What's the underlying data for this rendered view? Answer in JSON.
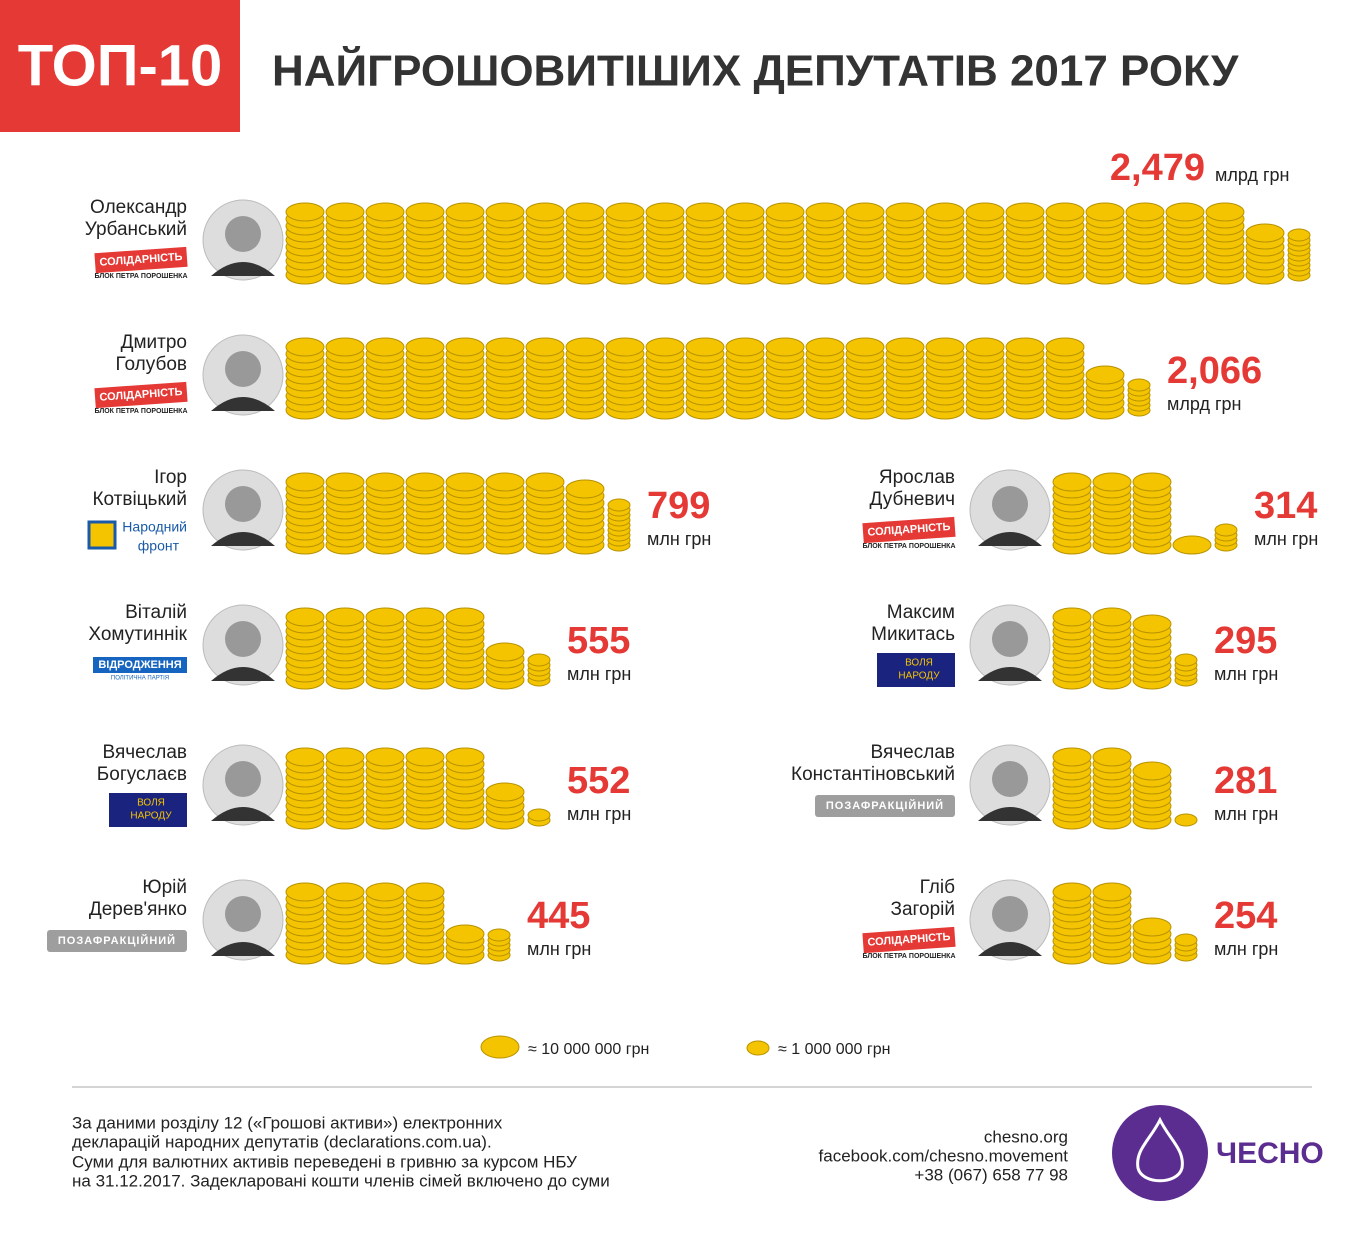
{
  "header": {
    "badge": "ТОП-10",
    "title": "НАЙГРОШОВИТІШИХ ДЕПУТАТІВ 2017 РОКУ"
  },
  "deputies": [
    {
      "name": [
        "Олександр",
        "Урбанський"
      ],
      "party": [
        "СОЛІДАРНІСТЬ",
        "БЛОК ПЕТРА ПОРОШЕНКА"
      ],
      "value": 2479,
      "value_label": "2,479",
      "unit": "млрд грн"
    },
    {
      "name": [
        "Дмитро",
        "Голубов"
      ],
      "party": [
        "СОЛІДАРНІСТЬ",
        "БЛОК ПЕТРА ПОРОШЕНКА"
      ],
      "value": 2066,
      "value_label": "2,066",
      "unit": "млрд грн"
    },
    {
      "name": [
        "Ігор",
        "Котвіцький"
      ],
      "party": [
        "Народний",
        "фронт"
      ],
      "value": 799,
      "unit": "млн грн"
    },
    {
      "name": [
        "Віталій",
        "Хомутиннік"
      ],
      "party": [
        "ВІДРОДЖЕННЯ",
        "ПОЛІТИЧНА ПАРТІЯ"
      ],
      "value": 555,
      "unit": "млн грн"
    },
    {
      "name": [
        "Вячеслав",
        "Богуслаєв"
      ],
      "party": [
        "ВОЛЯ",
        "НАРОДУ"
      ],
      "value": 552,
      "unit": "млн грн"
    },
    {
      "name": [
        "Юрій",
        "Дерев'янко"
      ],
      "party": [
        "ПОЗАФРАКЦІЙНИЙ"
      ],
      "value": 445,
      "unit": "млн грн"
    },
    {
      "name": [
        "Ярослав",
        "Дубневич"
      ],
      "party": [
        "СОЛІДАРНІСТЬ",
        "БЛОК ПЕТРА ПОРОШЕНКА"
      ],
      "value": 314,
      "unit": "млн грн"
    },
    {
      "name": [
        "Максим",
        "Микитась"
      ],
      "party": [
        "ВОЛЯ",
        "НАРОДУ"
      ],
      "value": 295,
      "unit": "млн грн"
    },
    {
      "name": [
        "Вячеслав",
        "Константіновський"
      ],
      "party": [
        "ПОЗАФРАКЦІЙНИЙ"
      ],
      "value": 281,
      "unit": "млн грн"
    },
    {
      "name": [
        "Гліб",
        "Загорій"
      ],
      "party": [
        "СОЛІДАРНІСТЬ",
        "БЛОК ПЕТРА ПОРОШЕНКА"
      ],
      "value": 254,
      "unit": "млн грн"
    }
  ],
  "legend": [
    {
      "label": "≈ 10 000 000 грн"
    },
    {
      "label": "≈ 1 000 000 грн"
    }
  ],
  "footer": {
    "source": [
      "За даними розділу 12 («Грошові активи») електронних",
      "декларацій народних депутатів (declarations.com.ua).",
      "Суми для валютних активів переведені в гривню за курсом НБУ",
      "на 31.12.2017. Задекларовані кошти членів сімей включено до суми"
    ],
    "contacts": [
      "chesno.org",
      "facebook.com/chesno.movement",
      "+38 (067) 658 77 98"
    ],
    "logo": "ЧЕСНО"
  }
}
